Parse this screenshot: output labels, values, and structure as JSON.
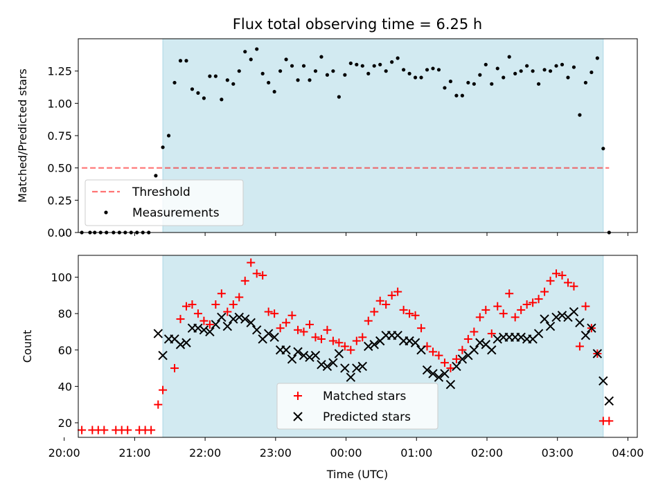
{
  "title": "Flux total observing time = 6.25 h",
  "colors": {
    "shade": "#add8e6",
    "threshold": "#ff0000",
    "matched": "#ff0000",
    "predicted": "#000000",
    "measurements": "#000000"
  },
  "chart_data": [
    {
      "type": "scatter",
      "ylabel": "Matched/Predicted stars",
      "xlim": [
        "20:12",
        "04:08"
      ],
      "ylim": [
        0,
        1.5
      ],
      "yticks": [
        "0.00",
        "0.25",
        "0.50",
        "0.75",
        "1.00",
        "1.25"
      ],
      "ytick_values": [
        0,
        0.25,
        0.5,
        0.75,
        1.0,
        1.25
      ],
      "shaded_range": [
        "21:24",
        "03:39"
      ],
      "threshold": {
        "label": "Threshold",
        "value": 0.5,
        "x_range": [
          "20:15",
          "03:44"
        ]
      },
      "legend_position": "lower-left",
      "series": [
        {
          "name": "Measurements",
          "x": [
            "20:15",
            "20:22",
            "20:26",
            "20:31",
            "20:36",
            "20:42",
            "20:47",
            "20:52",
            "20:57",
            "21:02",
            "21:07",
            "21:12",
            "21:18",
            "21:24",
            "21:29",
            "21:34",
            "21:39",
            "21:44",
            "21:49",
            "21:54",
            "21:59",
            "22:04",
            "22:09",
            "22:14",
            "22:19",
            "22:24",
            "22:29",
            "22:34",
            "22:39",
            "22:44",
            "22:49",
            "22:54",
            "22:59",
            "23:04",
            "23:09",
            "23:14",
            "23:19",
            "23:24",
            "23:29",
            "23:34",
            "23:39",
            "23:44",
            "23:49",
            "23:54",
            "23:59",
            "00:04",
            "00:09",
            "00:14",
            "00:19",
            "00:24",
            "00:29",
            "00:34",
            "00:39",
            "00:44",
            "00:49",
            "00:54",
            "00:59",
            "01:04",
            "01:09",
            "01:14",
            "01:19",
            "01:24",
            "01:29",
            "01:34",
            "01:39",
            "01:44",
            "01:49",
            "01:54",
            "01:59",
            "02:04",
            "02:09",
            "02:14",
            "02:19",
            "02:24",
            "02:29",
            "02:34",
            "02:39",
            "02:44",
            "02:49",
            "02:54",
            "02:59",
            "03:04",
            "03:09",
            "03:14",
            "03:19",
            "03:24",
            "03:29",
            "03:34",
            "03:39",
            "03:44"
          ],
          "y": [
            0,
            0,
            0,
            0,
            0,
            0,
            0,
            0,
            0,
            0,
            0,
            0,
            0.44,
            0.66,
            0.75,
            1.16,
            1.33,
            1.33,
            1.11,
            1.08,
            1.04,
            1.21,
            1.21,
            1.03,
            1.18,
            1.15,
            1.25,
            1.4,
            1.34,
            1.42,
            1.23,
            1.16,
            1.09,
            1.25,
            1.34,
            1.29,
            1.18,
            1.29,
            1.18,
            1.25,
            1.36,
            1.22,
            1.25,
            1.05,
            1.22,
            1.31,
            1.3,
            1.29,
            1.23,
            1.29,
            1.3,
            1.25,
            1.32,
            1.35,
            1.26,
            1.23,
            1.2,
            1.2,
            1.26,
            1.27,
            1.26,
            1.12,
            1.17,
            1.06,
            1.06,
            1.16,
            1.15,
            1.22,
            1.3,
            1.15,
            1.27,
            1.2,
            1.36,
            1.23,
            1.25,
            1.29,
            1.25,
            1.15,
            1.26,
            1.25,
            1.29,
            1.3,
            1.2,
            1.28,
            0.91,
            1.16,
            1.24,
            1.35,
            0.65,
            0
          ]
        }
      ]
    },
    {
      "type": "scatter",
      "xlabel": "Time (UTC)",
      "ylabel": "Count",
      "xlim": [
        "20:12",
        "04:08"
      ],
      "ylim": [
        12,
        112
      ],
      "yticks": [
        "20",
        "40",
        "60",
        "80",
        "100"
      ],
      "ytick_values": [
        20,
        40,
        60,
        80,
        100
      ],
      "xticks": [
        "20:00",
        "21:00",
        "22:00",
        "23:00",
        "00:00",
        "01:00",
        "02:00",
        "03:00",
        "04:00"
      ],
      "shaded_range": [
        "21:24",
        "03:39"
      ],
      "legend_position": "lower-center",
      "series": [
        {
          "name": "Matched stars",
          "x": [
            "20:15",
            "20:24",
            "20:29",
            "20:34",
            "20:44",
            "20:49",
            "20:54",
            "21:04",
            "21:09",
            "21:14",
            "21:20",
            "21:24",
            "21:34",
            "21:39",
            "21:44",
            "21:49",
            "21:54",
            "21:59",
            "22:04",
            "22:09",
            "22:14",
            "22:19",
            "22:24",
            "22:29",
            "22:34",
            "22:39",
            "22:44",
            "22:49",
            "22:54",
            "22:59",
            "23:04",
            "23:09",
            "23:14",
            "23:19",
            "23:24",
            "23:29",
            "23:34",
            "23:39",
            "23:44",
            "23:49",
            "23:54",
            "23:59",
            "00:04",
            "00:09",
            "00:14",
            "00:19",
            "00:24",
            "00:29",
            "00:34",
            "00:39",
            "00:44",
            "00:49",
            "00:54",
            "00:59",
            "01:04",
            "01:09",
            "01:14",
            "01:19",
            "01:24",
            "01:29",
            "01:34",
            "01:39",
            "01:44",
            "01:49",
            "01:54",
            "01:59",
            "02:04",
            "02:09",
            "02:14",
            "02:19",
            "02:24",
            "02:29",
            "02:34",
            "02:39",
            "02:44",
            "02:49",
            "02:54",
            "02:59",
            "03:04",
            "03:09",
            "03:14",
            "03:19",
            "03:24",
            "03:29",
            "03:34",
            "03:39",
            "03:44"
          ],
          "y": [
            16,
            16,
            16,
            16,
            16,
            16,
            16,
            16,
            16,
            16,
            30,
            38,
            50,
            77,
            84,
            85,
            80,
            76,
            74,
            85,
            91,
            81,
            85,
            89,
            98,
            108,
            102,
            101,
            81,
            80,
            72,
            75,
            79,
            71,
            70,
            74,
            67,
            66,
            71,
            65,
            64,
            62,
            60,
            65,
            67,
            76,
            81,
            87,
            85,
            90,
            92,
            82,
            80,
            79,
            72,
            62,
            59,
            57,
            53,
            50,
            55,
            60,
            66,
            70,
            78,
            82,
            69,
            84,
            80,
            91,
            78,
            82,
            85,
            86,
            88,
            92,
            98,
            102,
            101,
            97,
            95,
            62,
            84,
            72,
            58,
            21,
            21
          ]
        },
        {
          "name": "Predicted stars",
          "x": [
            "21:20",
            "21:24",
            "21:29",
            "21:34",
            "21:39",
            "21:44",
            "21:49",
            "21:54",
            "21:59",
            "22:04",
            "22:09",
            "22:14",
            "22:19",
            "22:24",
            "22:29",
            "22:34",
            "22:39",
            "22:44",
            "22:49",
            "22:54",
            "22:59",
            "23:04",
            "23:09",
            "23:14",
            "23:19",
            "23:24",
            "23:29",
            "23:34",
            "23:39",
            "23:44",
            "23:49",
            "23:54",
            "23:59",
            "00:04",
            "00:09",
            "00:14",
            "00:19",
            "00:24",
            "00:29",
            "00:34",
            "00:39",
            "00:44",
            "00:49",
            "00:54",
            "00:59",
            "01:04",
            "01:09",
            "01:14",
            "01:19",
            "01:24",
            "01:29",
            "01:34",
            "01:39",
            "01:44",
            "01:49",
            "01:54",
            "01:59",
            "02:04",
            "02:09",
            "02:14",
            "02:19",
            "02:24",
            "02:29",
            "02:34",
            "02:39",
            "02:44",
            "02:49",
            "02:54",
            "02:59",
            "03:04",
            "03:09",
            "03:14",
            "03:19",
            "03:24",
            "03:29",
            "03:34",
            "03:39",
            "03:44",
            "03:49"
          ],
          "y": [
            69,
            57,
            66,
            66,
            63,
            64,
            72,
            72,
            71,
            70,
            74,
            78,
            73,
            77,
            78,
            77,
            75,
            71,
            66,
            69,
            67,
            60,
            60,
            55,
            59,
            57,
            56,
            57,
            52,
            51,
            53,
            58,
            50,
            45,
            50,
            51,
            62,
            63,
            65,
            68,
            68,
            68,
            65,
            65,
            64,
            60,
            49,
            47,
            45,
            47,
            41,
            51,
            55,
            57,
            60,
            64,
            63,
            60,
            66,
            67,
            67,
            67,
            67,
            66,
            66,
            69,
            77,
            73,
            78,
            79,
            78,
            81,
            75,
            68,
            72,
            58,
            43,
            32,
            null
          ]
        }
      ]
    }
  ]
}
